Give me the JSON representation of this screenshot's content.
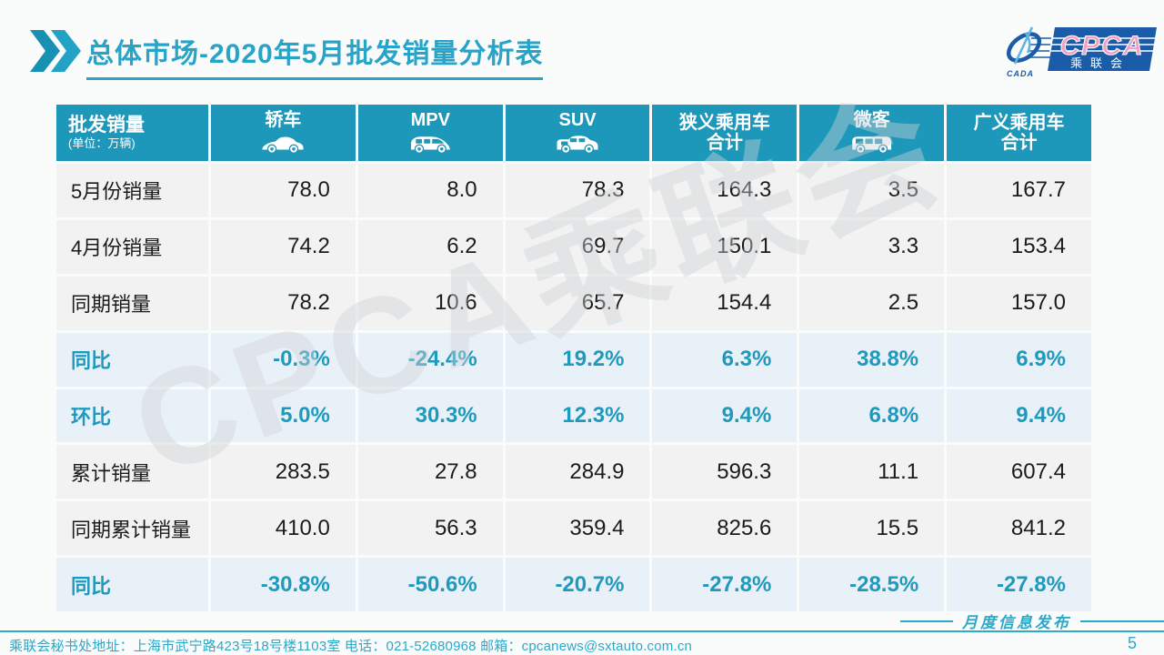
{
  "title": {
    "emphasis": "总体市场",
    "rest": "-2020年5月批发销量分析表"
  },
  "logo": {
    "cpca": "CPCA",
    "sub": "乘联会",
    "cada": "CADA"
  },
  "watermark": "CPCA乘联会",
  "table": {
    "header": {
      "col0_title": "批发销量",
      "col0_sub": "(单位：万辆)",
      "columns": [
        {
          "label_lines": [
            "轿车"
          ],
          "icon": "sedan"
        },
        {
          "label_lines": [
            "MPV"
          ],
          "icon": "mpv"
        },
        {
          "label_lines": [
            "SUV"
          ],
          "icon": "suv"
        },
        {
          "label_lines": [
            "狭义乘用车",
            "合计"
          ],
          "icon": null
        },
        {
          "label_lines": [
            "微客"
          ],
          "icon": "minibus"
        },
        {
          "label_lines": [
            "广义乘用车",
            "合计"
          ],
          "icon": null
        }
      ]
    },
    "rows": [
      {
        "label": "5月份销量",
        "type": "normal",
        "values": [
          "78.0",
          "8.0",
          "78.3",
          "164.3",
          "3.5",
          "167.7"
        ]
      },
      {
        "label": "4月份销量",
        "type": "normal",
        "values": [
          "74.2",
          "6.2",
          "69.7",
          "150.1",
          "3.3",
          "153.4"
        ]
      },
      {
        "label": "同期销量",
        "type": "normal",
        "values": [
          "78.2",
          "10.6",
          "65.7",
          "154.4",
          "2.5",
          "157.0"
        ]
      },
      {
        "label": "同比",
        "type": "percent",
        "values": [
          "-0.3%",
          "-24.4%",
          "19.2%",
          "6.3%",
          "38.8%",
          "6.9%"
        ]
      },
      {
        "label": "环比",
        "type": "percent",
        "values": [
          "5.0%",
          "30.3%",
          "12.3%",
          "9.4%",
          "6.8%",
          "9.4%"
        ]
      },
      {
        "label": "累计销量",
        "type": "normal",
        "values": [
          "283.5",
          "27.8",
          "284.9",
          "596.3",
          "11.1",
          "607.4"
        ]
      },
      {
        "label": "同期累计销量",
        "type": "normal",
        "values": [
          "410.0",
          "56.3",
          "359.4",
          "825.6",
          "15.5",
          "841.2"
        ]
      },
      {
        "label": "同比",
        "type": "percent",
        "values": [
          "-30.8%",
          "-50.6%",
          "-20.7%",
          "-27.8%",
          "-28.5%",
          "-27.8%"
        ]
      }
    ]
  },
  "footer": {
    "address": "乘联会秘书处地址：上海市武宁路423号18号楼1103室 电话：021-52680968  邮箱：cpcanews@sxtauto.com.cn",
    "publication": "月度信息发布",
    "page": "5"
  },
  "colors": {
    "header_teal": "#1E98BA",
    "title_teal": "#28A4C8",
    "percent_teal": "#1E9ABE",
    "row_gray": "#F2F2F2",
    "row_blue": "#E9F1F8",
    "logo_blue": "#1B5CA8",
    "logo_pink": "#F2A0C0",
    "footer_teal": "#2BA9C9"
  }
}
